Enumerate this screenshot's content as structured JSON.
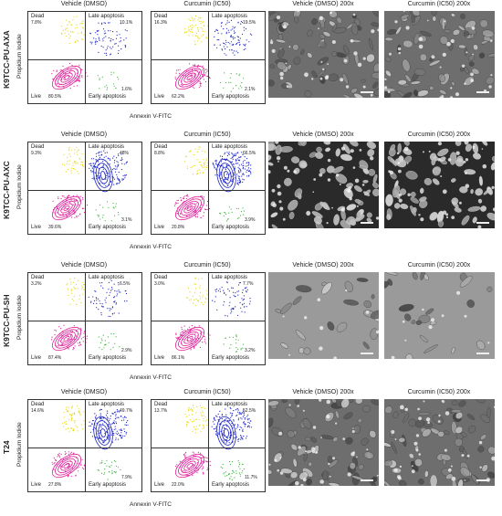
{
  "quadrant_labels": {
    "dead": "Dead",
    "late": "Late apoptosis",
    "live": "Live",
    "early": "Early apoptosis"
  },
  "axis": {
    "y": "Propidium Iodide",
    "x": "Annexin V-FITC"
  },
  "panels": [
    {
      "line": "K9TCC-PU-AXA",
      "plots": [
        {
          "title": "Vehicle (DMSO)",
          "dead": "7.8%",
          "late": "10.1%",
          "live": "80.5%",
          "early": "1.6%"
        },
        {
          "title": "Curcumin (IC50)",
          "dead": "16.3%",
          "late": "19.5%",
          "live": "62.2%",
          "early": "2.1%"
        }
      ],
      "photos": [
        "Vehicle (DMSO) 200x",
        "Curcumin (IC50) 200x"
      ],
      "photo_style": "dense"
    },
    {
      "line": "K9TCC-PU-AXC",
      "plots": [
        {
          "title": "Vehicle (DMSO)",
          "dead": "9.3%",
          "late": "48%",
          "live": "39.6%",
          "early": "3.1%"
        },
        {
          "title": "Curcumin (IC50)",
          "dead": "8.8%",
          "late": "66.5%",
          "live": "20.8%",
          "early": "3.9%"
        }
      ],
      "photos": [
        "Vehicle (DMSO) 200x",
        "Curcumin (IC50) 200x"
      ],
      "photo_style": "dark"
    },
    {
      "line": "K9TCC-PU-SH",
      "plots": [
        {
          "title": "Vehicle (DMSO)",
          "dead": "3.2%",
          "late": "6.5%",
          "live": "87.4%",
          "early": "2.9%"
        },
        {
          "title": "Curcumin (IC50)",
          "dead": "3.0%",
          "late": "7.7%",
          "live": "86.1%",
          "early": "3.2%"
        }
      ],
      "photos": [
        "Vehicle (DMSO) 200x",
        "Curcumin (IC50) 200x"
      ],
      "photo_style": "sparse"
    },
    {
      "line": "T24",
      "plots": [
        {
          "title": "Vehicle (DMSO)",
          "dead": "14.6%",
          "late": "49.7%",
          "live": "27.8%",
          "early": "7.9%"
        },
        {
          "title": "Curcumin (IC50)",
          "dead": "13.7%",
          "late": "52.5%",
          "live": "22.0%",
          "early": "11.7%"
        }
      ],
      "photos": [
        "Vehicle (DMSO) 200x",
        "Curcumin (IC50) 200x"
      ],
      "photo_style": "dense"
    }
  ],
  "colors": {
    "live": "#e0209a",
    "dead": "#e8d810",
    "late": "#1f27c4",
    "early": "#3fb83f"
  }
}
